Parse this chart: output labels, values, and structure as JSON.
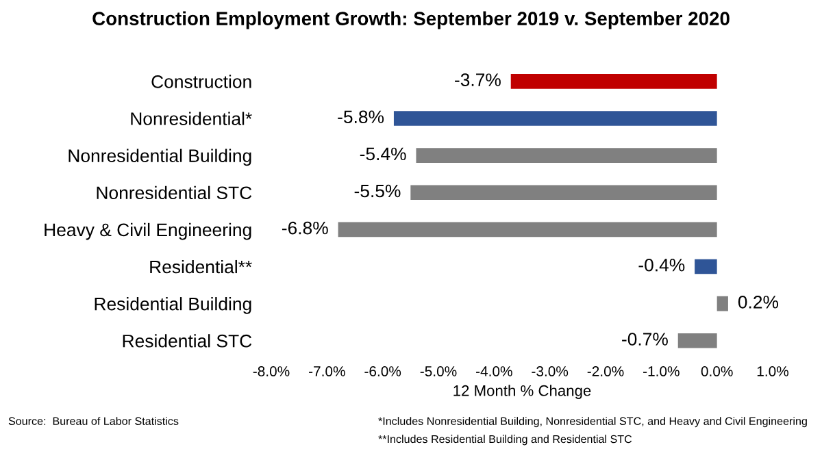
{
  "chart_data": {
    "type": "bar",
    "orientation": "horizontal",
    "title": "Construction Employment Growth: September 2019 v. September 2020",
    "xlabel": "12 Month % Change",
    "categories": [
      "Construction",
      "Nonresidential*",
      "Nonresidential Building",
      "Nonresidential STC",
      "Heavy & Civil Engineering",
      "Residential**",
      "Residential Building",
      "Residential STC"
    ],
    "values": [
      -3.7,
      -5.8,
      -5.4,
      -5.5,
      -6.8,
      -0.4,
      0.2,
      -0.7
    ],
    "colors": [
      "#c00000",
      "#2f5597",
      "#808080",
      "#808080",
      "#808080",
      "#2f5597",
      "#808080",
      "#808080"
    ],
    "value_labels": [
      "-3.7%",
      "-5.8%",
      "-5.4%",
      "-5.5%",
      "-6.8%",
      "-0.4%",
      "0.2%",
      "-0.7%"
    ],
    "xlim": [
      -8,
      1
    ],
    "xticks": [
      {
        "value": -8,
        "label": "-8.0%"
      },
      {
        "value": -7,
        "label": "-7.0%"
      },
      {
        "value": -6,
        "label": "-6.0%"
      },
      {
        "value": -5,
        "label": "-5.0%"
      },
      {
        "value": -4,
        "label": "-4.0%"
      },
      {
        "value": -3,
        "label": "-3.0%"
      },
      {
        "value": -2,
        "label": "-2.0%"
      },
      {
        "value": -1,
        "label": "-1.0%"
      },
      {
        "value": 0,
        "label": "0.0%"
      },
      {
        "value": 1,
        "label": "1.0%"
      }
    ],
    "grid": false,
    "legend": false,
    "annotations": [
      "Source:  Bureau of Labor Statistics",
      "*Includes Nonresidential Building, Nonresidential STC, and Heavy and Civil Engineering",
      "**Includes Residential Building and Residential STC"
    ]
  }
}
